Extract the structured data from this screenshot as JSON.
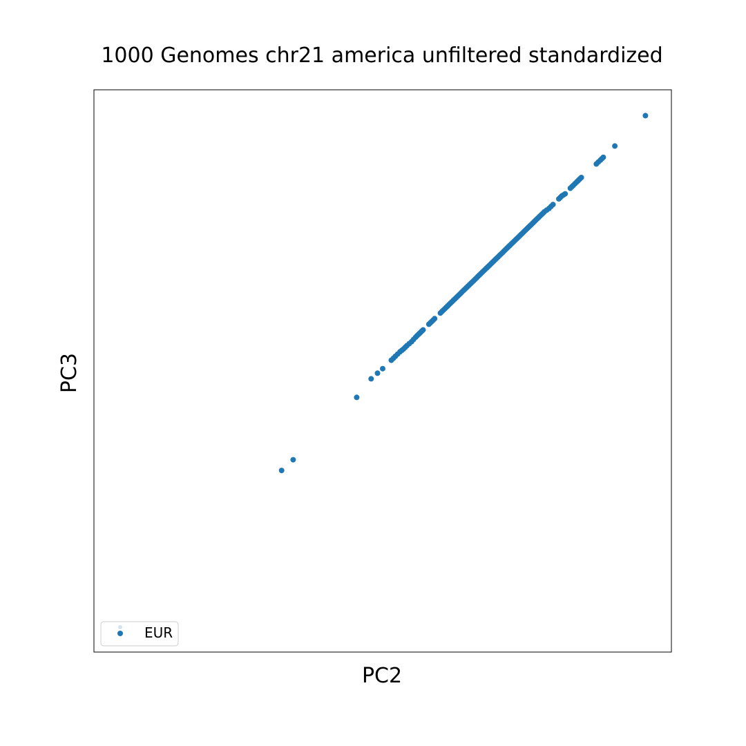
{
  "chart_data": {
    "type": "scatter",
    "title": "1000 Genomes chr21 america unfiltered standardized",
    "xlabel": "PC2",
    "ylabel": "PC3",
    "xlim": [
      0,
      100
    ],
    "ylim": [
      0,
      100
    ],
    "grid": false,
    "ticks_visible": false,
    "legend_position": "lower-left",
    "series": [
      {
        "name": "EUR",
        "color": "#1f77b4",
        "points": [
          [
            32.5,
            32.3
          ],
          [
            34.5,
            34.2
          ],
          [
            45.5,
            45.3
          ],
          [
            48.0,
            48.6
          ],
          [
            49.1,
            49.6
          ],
          [
            50.0,
            50.4
          ],
          [
            51.5,
            51.9
          ],
          [
            52.2,
            52.6
          ],
          [
            53.0,
            53.4
          ],
          [
            53.6,
            53.9
          ],
          [
            54.2,
            54.5
          ],
          [
            55.0,
            55.2
          ],
          [
            55.7,
            56.0
          ],
          [
            56.2,
            56.5
          ],
          [
            56.6,
            56.9
          ],
          [
            57.0,
            57.3
          ],
          [
            58.0,
            58.3
          ],
          [
            58.5,
            58.8
          ],
          [
            59.0,
            59.3
          ],
          [
            60.0,
            60.3
          ],
          [
            60.5,
            60.8
          ],
          [
            61.0,
            61.3
          ],
          [
            61.5,
            61.8
          ],
          [
            62.0,
            62.3
          ],
          [
            62.5,
            62.8
          ],
          [
            63.0,
            63.3
          ],
          [
            63.5,
            63.8
          ],
          [
            64.0,
            64.3
          ],
          [
            64.5,
            64.8
          ],
          [
            65.0,
            65.3
          ],
          [
            65.5,
            65.8
          ],
          [
            66.0,
            66.3
          ],
          [
            66.5,
            66.8
          ],
          [
            67.0,
            67.3
          ],
          [
            67.5,
            67.8
          ],
          [
            68.0,
            68.3
          ],
          [
            68.5,
            68.8
          ],
          [
            69.0,
            69.3
          ],
          [
            69.5,
            69.8
          ],
          [
            70.0,
            70.3
          ],
          [
            70.5,
            70.8
          ],
          [
            71.0,
            71.3
          ],
          [
            71.5,
            71.8
          ],
          [
            72.0,
            72.3
          ],
          [
            72.5,
            72.8
          ],
          [
            73.0,
            73.3
          ],
          [
            73.5,
            73.8
          ],
          [
            74.0,
            74.3
          ],
          [
            74.5,
            74.8
          ],
          [
            75.0,
            75.3
          ],
          [
            75.5,
            75.8
          ],
          [
            76.0,
            76.3
          ],
          [
            76.5,
            76.8
          ],
          [
            77.0,
            77.3
          ],
          [
            77.5,
            77.8
          ],
          [
            78.0,
            78.3
          ],
          [
            78.8,
            78.9
          ],
          [
            79.5,
            79.6
          ],
          [
            80.5,
            80.6
          ],
          [
            81.0,
            81.1
          ],
          [
            81.6,
            81.5
          ],
          [
            82.5,
            82.5
          ],
          [
            83.0,
            83.0
          ],
          [
            83.6,
            83.6
          ],
          [
            84.0,
            84.0
          ],
          [
            84.4,
            84.4
          ],
          [
            87.0,
            86.8
          ],
          [
            87.7,
            87.5
          ],
          [
            88.2,
            88.0
          ],
          [
            90.2,
            90.0
          ],
          [
            95.5,
            95.4
          ]
        ]
      }
    ]
  }
}
